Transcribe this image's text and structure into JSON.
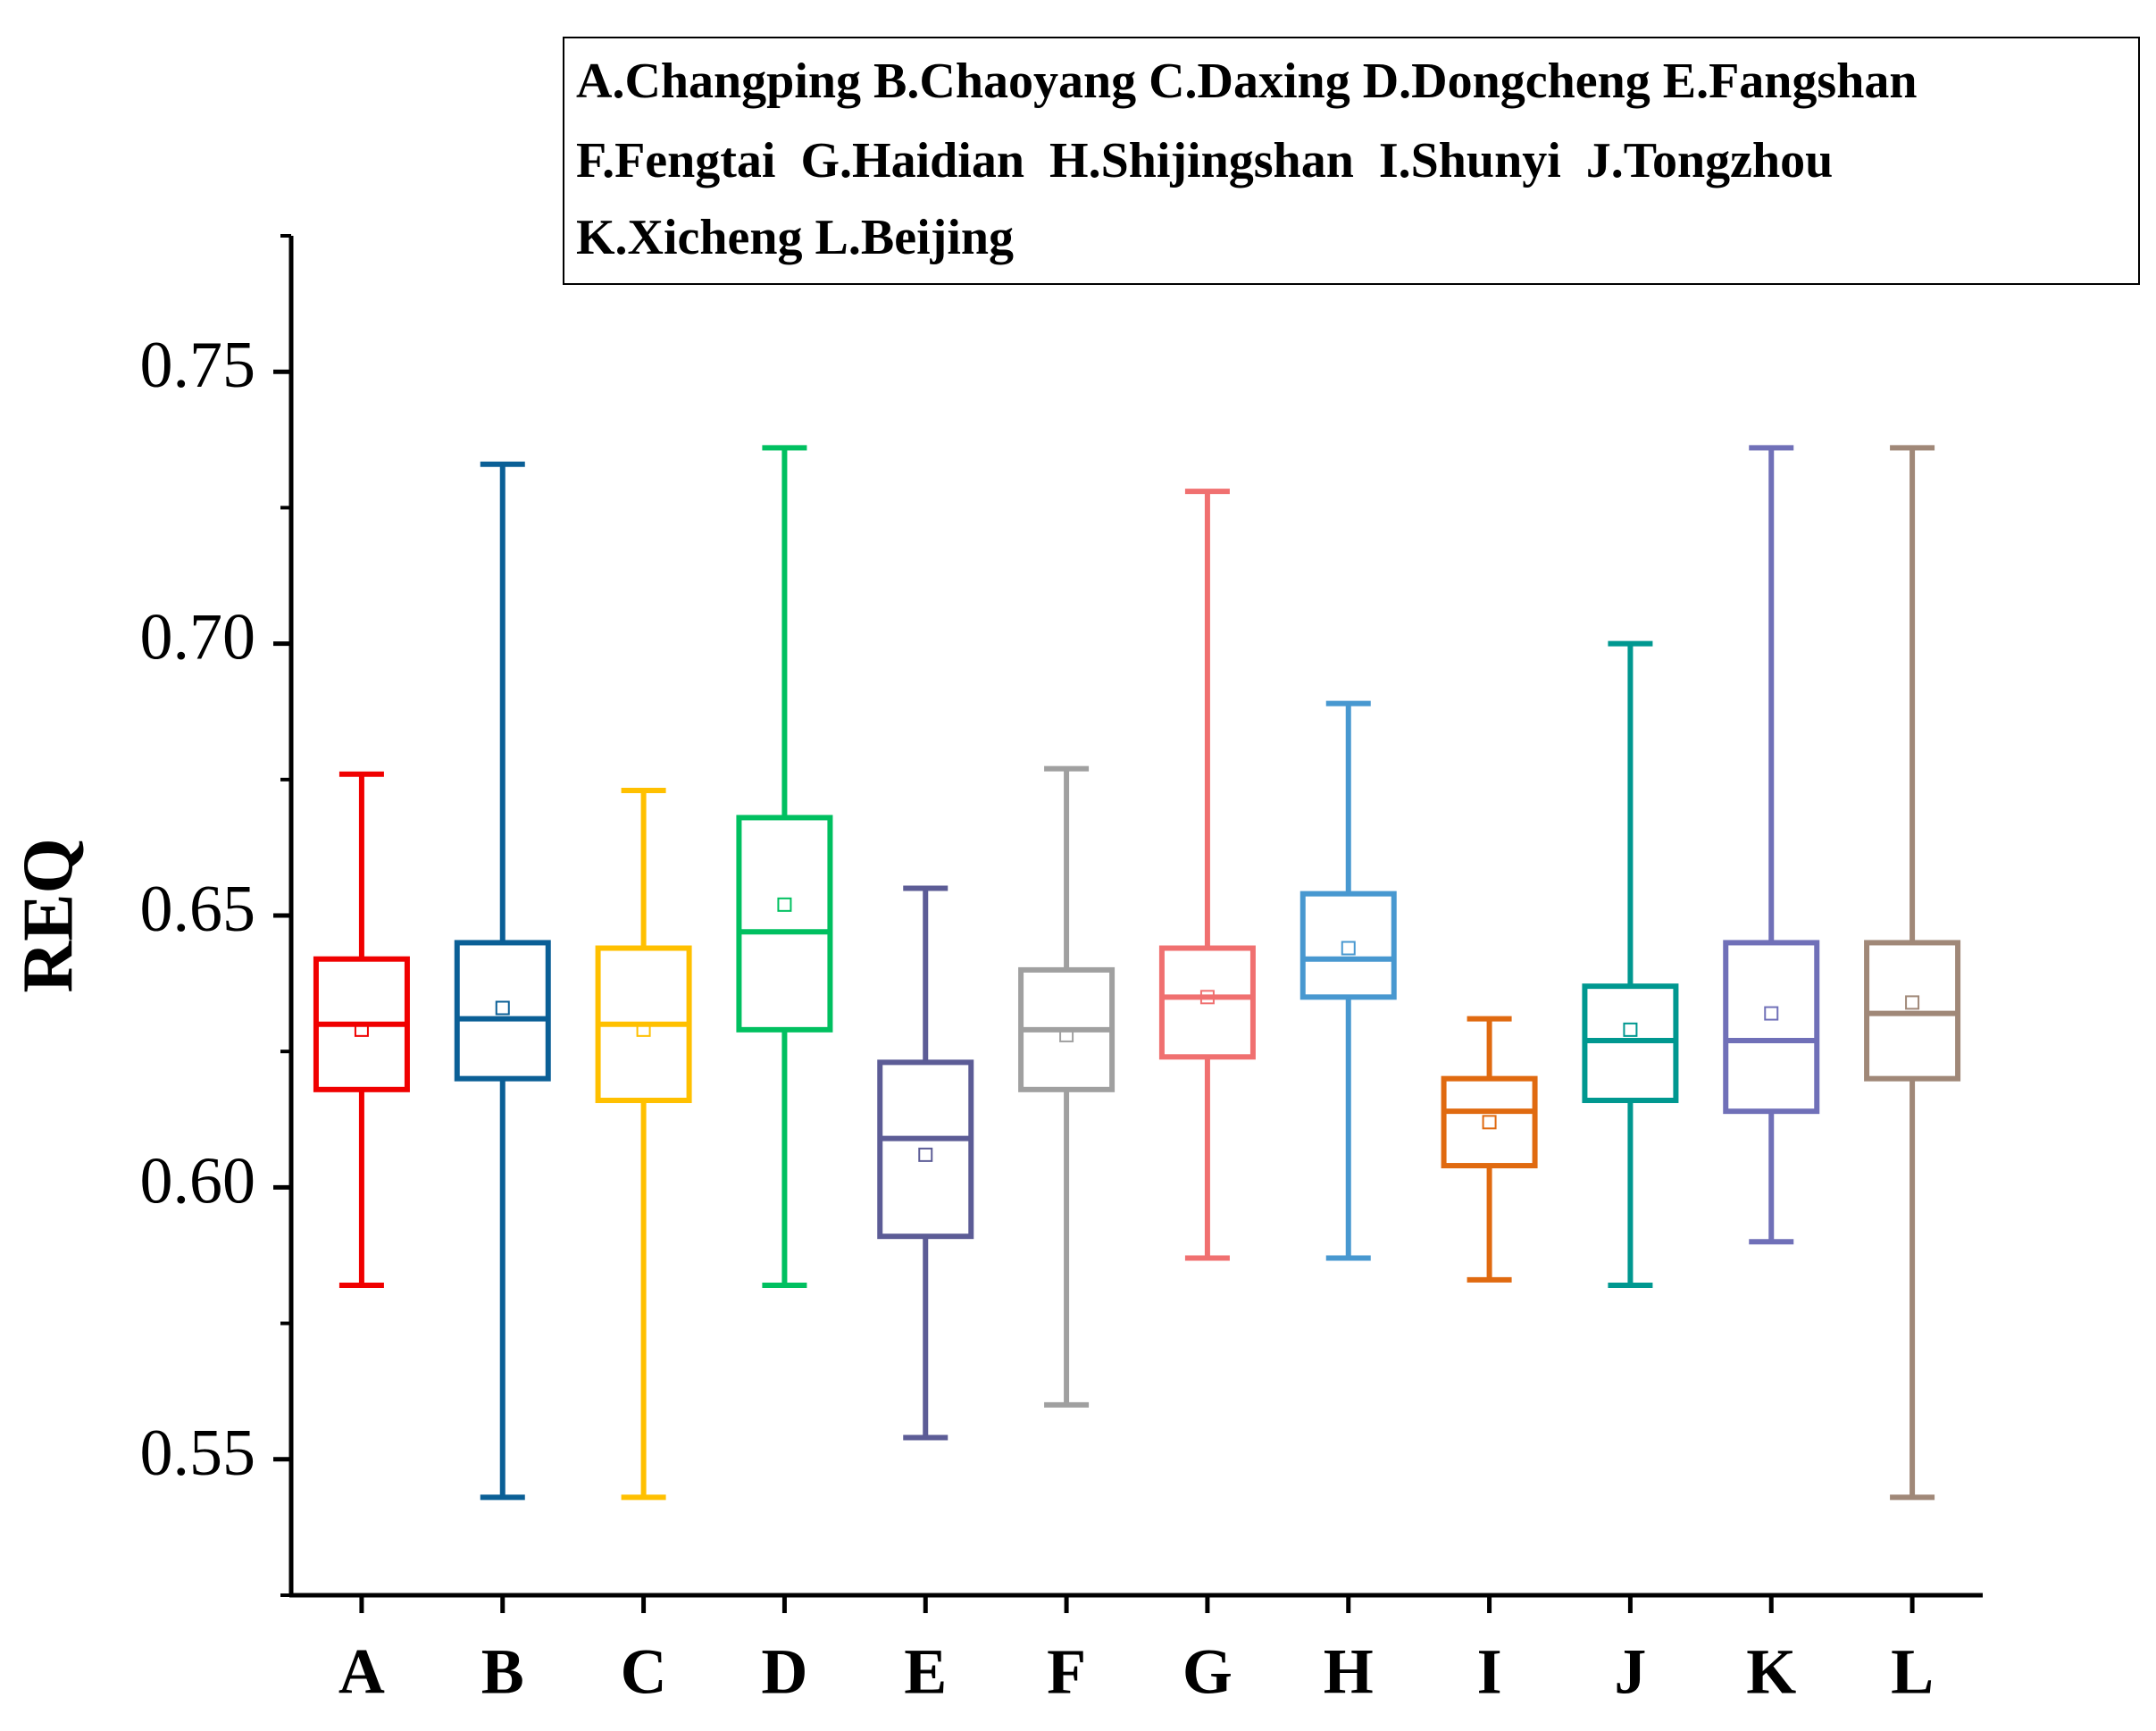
{
  "chart_data": {
    "type": "box",
    "y_label": "REQ",
    "legend": [
      "A.Changping B.Chaoyang C.Daxing D.Dongcheng E.Fangshan",
      "F.Fengtai  G.Haidian  H.Shijingshan  I.Shunyi  J.Tongzhou",
      "K.Xicheng L.Beijing"
    ],
    "categories": [
      "A",
      "B",
      "C",
      "D",
      "E",
      "F",
      "G",
      "H",
      "I",
      "J",
      "K",
      "L"
    ],
    "colors": [
      "#f00000",
      "#0a5f96",
      "#ffc000",
      "#00c060",
      "#5c5c96",
      "#a0a0a0",
      "#f07070",
      "#4898d0",
      "#e06a10",
      "#009890",
      "#7070b8",
      "#a08878"
    ],
    "max": [
      0.676,
      0.733,
      0.673,
      0.736,
      0.655,
      0.677,
      0.728,
      0.689,
      0.631,
      0.7,
      0.736,
      0.736
    ],
    "q3": [
      0.642,
      0.645,
      0.644,
      0.668,
      0.623,
      0.64,
      0.644,
      0.654,
      0.62,
      0.637,
      0.645,
      0.645
    ],
    "median": [
      0.63,
      0.631,
      0.63,
      0.647,
      0.609,
      0.629,
      0.635,
      0.642,
      0.614,
      0.627,
      0.627,
      0.632
    ],
    "q1": [
      0.618,
      0.62,
      0.616,
      0.629,
      0.591,
      0.618,
      0.624,
      0.635,
      0.604,
      0.616,
      0.614,
      0.62
    ],
    "min": [
      0.582,
      0.543,
      0.543,
      0.582,
      0.554,
      0.56,
      0.587,
      0.587,
      0.583,
      0.582,
      0.59,
      0.543
    ],
    "mean": [
      0.629,
      0.633,
      0.629,
      0.652,
      0.606,
      0.628,
      0.635,
      0.644,
      0.612,
      0.629,
      0.632,
      0.634
    ],
    "ylim": [
      0.525,
      0.775
    ],
    "yticks": [
      {
        "value": 0.55,
        "label": "0.55"
      },
      {
        "value": 0.6,
        "label": "0.60"
      },
      {
        "value": 0.65,
        "label": "0.65"
      },
      {
        "value": 0.7,
        "label": "0.70"
      },
      {
        "value": 0.75,
        "label": "0.75"
      }
    ]
  }
}
